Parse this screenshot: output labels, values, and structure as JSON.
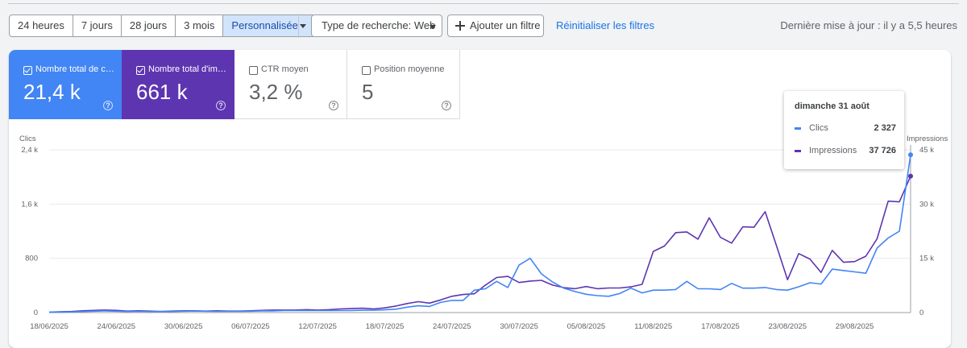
{
  "toolbar": {
    "range_options": [
      "24 heures",
      "7 jours",
      "28 jours",
      "3 mois",
      "Personnalisée"
    ],
    "search_type_label": "Type de recherche: Web",
    "add_filter_label": "Ajouter un filtre",
    "reset_label": "Réinitialiser les filtres",
    "last_update": "Dernière mise à jour : il y a 5,5 heures"
  },
  "metrics": [
    {
      "label": "Nombre total de clics",
      "value": "21,4 k",
      "checked": true,
      "color": "#4285f4"
    },
    {
      "label": "Nombre total d'impressions",
      "value": "661 k",
      "checked": true,
      "color": "#5e35b1"
    },
    {
      "label": "CTR moyen",
      "value": "3,2 %",
      "checked": false
    },
    {
      "label": "Position moyenne",
      "value": "5",
      "checked": false
    }
  ],
  "tooltip": {
    "title": "dimanche 31 août",
    "rows": [
      {
        "name": "Clics",
        "value": "2 327",
        "color": "#4285f4"
      },
      {
        "name": "Impressions",
        "value": "37 726",
        "color": "#5e35b1"
      }
    ]
  },
  "chart_data": {
    "type": "line",
    "left_axis_label": "Clics",
    "right_axis_label": "Impressions",
    "left_ticks": [
      "0",
      "800",
      "1,6 k",
      "2,4 k"
    ],
    "left_tick_values": [
      0,
      800,
      1600,
      2400
    ],
    "right_ticks": [
      "0",
      "15 k",
      "30 k",
      "45 k"
    ],
    "right_tick_values": [
      0,
      15000,
      30000,
      45000
    ],
    "x_ticks": [
      "18/06/2025",
      "24/06/2025",
      "30/06/2025",
      "06/07/2025",
      "12/07/2025",
      "18/07/2025",
      "24/07/2025",
      "30/07/2025",
      "05/08/2025",
      "11/08/2025",
      "17/08/2025",
      "23/08/2025",
      "29/08/2025"
    ],
    "x_tick_index": [
      0,
      6,
      12,
      18,
      24,
      30,
      36,
      42,
      48,
      54,
      60,
      66,
      72
    ],
    "ylim_left": [
      0,
      2400
    ],
    "ylim_right": [
      0,
      45000
    ],
    "series": [
      {
        "name": "Clics",
        "color": "#4285f4",
        "axis": "left",
        "values": [
          5,
          5,
          10,
          15,
          20,
          25,
          20,
          15,
          18,
          15,
          15,
          15,
          20,
          22,
          20,
          18,
          18,
          18,
          20,
          25,
          25,
          30,
          30,
          30,
          30,
          30,
          30,
          30,
          35,
          35,
          40,
          50,
          80,
          100,
          90,
          150,
          180,
          180,
          330,
          350,
          460,
          370,
          700,
          800,
          570,
          450,
          360,
          310,
          270,
          250,
          240,
          280,
          360,
          290,
          330,
          330,
          340,
          460,
          350,
          350,
          340,
          430,
          360,
          360,
          370,
          340,
          330,
          380,
          440,
          420,
          640,
          620,
          600,
          580,
          950,
          1100,
          1200,
          2327
        ]
      },
      {
        "name": "Impressions",
        "color": "#5e35b1",
        "axis": "right",
        "values": [
          100,
          200,
          300,
          500,
          600,
          700,
          600,
          400,
          500,
          400,
          300,
          400,
          500,
          500,
          400,
          500,
          400,
          400,
          500,
          600,
          700,
          700,
          700,
          800,
          700,
          800,
          1000,
          1100,
          1200,
          1000,
          1300,
          1800,
          2500,
          3000,
          2600,
          3500,
          4500,
          5000,
          5200,
          7600,
          9700,
          10000,
          8300,
          8700,
          8900,
          7600,
          6900,
          6600,
          7200,
          6600,
          6800,
          6800,
          7100,
          7800,
          16900,
          18400,
          22100,
          22300,
          20300,
          26200,
          20800,
          19200,
          23700,
          23600,
          27900,
          18600,
          9100,
          16300,
          14800,
          11100,
          17200,
          13900,
          14100,
          15600,
          20400,
          30800,
          30600,
          37726
        ]
      }
    ]
  }
}
